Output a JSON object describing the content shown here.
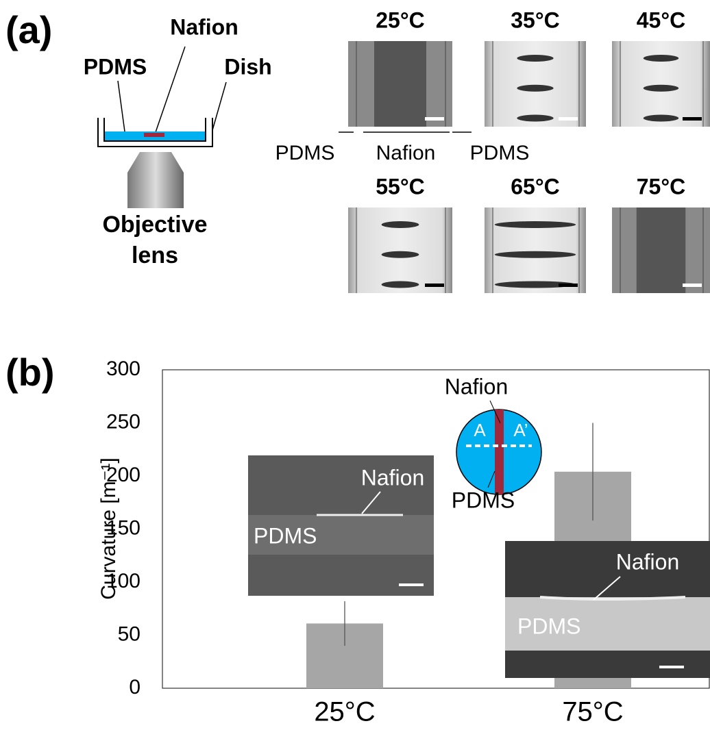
{
  "panel_a": {
    "label": "(a)",
    "setup": {
      "nafion": "Nafion",
      "pdms": "PDMS",
      "dish": "Dish",
      "objective": [
        "Objective",
        "lens"
      ]
    },
    "micrographs": [
      "25°C",
      "35°C",
      "45°C",
      "55°C",
      "65°C",
      "75°C"
    ],
    "region_labels": [
      "PDMS",
      "Nafion",
      "PDMS"
    ]
  },
  "panel_b_label": "(b)",
  "chart_data": {
    "type": "bar",
    "y_label": "Curvature [m⁻¹]",
    "categories": [
      "25°C",
      "75°C"
    ],
    "values": [
      61,
      204
    ],
    "errors": [
      21,
      46
    ],
    "color": "#a6a6a6",
    "ylim": [
      0,
      300
    ],
    "yticks": [
      0,
      50,
      100,
      150,
      200,
      250,
      300
    ],
    "insets": {
      "schematic": {
        "nafion": "Nafion",
        "a": "A",
        "a_prime": "A’",
        "pdms": "PDMS"
      },
      "sem_25": {
        "nafion": "Nafion",
        "pdms": "PDMS"
      },
      "sem_75": {
        "nafion": "Nafion",
        "pdms": "PDMS"
      }
    }
  }
}
